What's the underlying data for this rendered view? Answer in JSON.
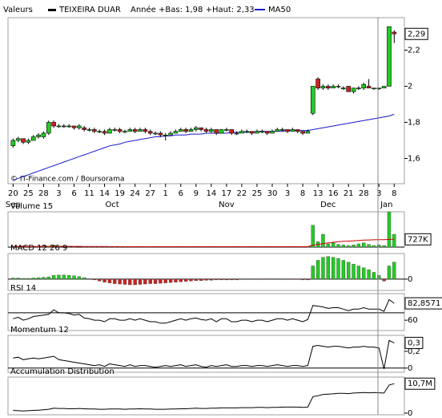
{
  "chart_data": [
    {
      "type": "candlestick",
      "legend_title": "Valeurs",
      "name": "TEIXEIRA DUAR",
      "range_text": "Année +Bas: 1,98 +Haut: 2,33",
      "credit": "© IT-Finance.com / Boursorama",
      "up_color": "#22cc22",
      "down_color": "#cc2222",
      "ohlc": [
        [
          1.67,
          1.71,
          1.66,
          1.7
        ],
        [
          1.7,
          1.72,
          1.69,
          1.71
        ],
        [
          1.71,
          1.71,
          1.68,
          1.69
        ],
        [
          1.69,
          1.71,
          1.68,
          1.7
        ],
        [
          1.7,
          1.73,
          1.7,
          1.72
        ],
        [
          1.72,
          1.74,
          1.71,
          1.73
        ],
        [
          1.72,
          1.75,
          1.71,
          1.74
        ],
        [
          1.74,
          1.81,
          1.73,
          1.8
        ],
        [
          1.8,
          1.81,
          1.77,
          1.78
        ],
        [
          1.78,
          1.79,
          1.77,
          1.78
        ],
        [
          1.78,
          1.79,
          1.77,
          1.78
        ],
        [
          1.78,
          1.79,
          1.77,
          1.78
        ],
        [
          1.78,
          1.78,
          1.76,
          1.77
        ],
        [
          1.77,
          1.79,
          1.76,
          1.78
        ],
        [
          1.77,
          1.78,
          1.75,
          1.76
        ],
        [
          1.76,
          1.77,
          1.75,
          1.76
        ],
        [
          1.76,
          1.77,
          1.74,
          1.75
        ],
        [
          1.75,
          1.76,
          1.74,
          1.75
        ],
        [
          1.75,
          1.76,
          1.73,
          1.74
        ],
        [
          1.74,
          1.77,
          1.74,
          1.76
        ],
        [
          1.76,
          1.77,
          1.75,
          1.76
        ],
        [
          1.76,
          1.77,
          1.74,
          1.75
        ],
        [
          1.75,
          1.76,
          1.74,
          1.75
        ],
        [
          1.75,
          1.77,
          1.75,
          1.76
        ],
        [
          1.76,
          1.77,
          1.74,
          1.75
        ],
        [
          1.75,
          1.77,
          1.75,
          1.76
        ],
        [
          1.76,
          1.77,
          1.74,
          1.75
        ],
        [
          1.75,
          1.76,
          1.73,
          1.74
        ],
        [
          1.74,
          1.75,
          1.73,
          1.74
        ],
        [
          1.74,
          1.75,
          1.72,
          1.73
        ],
        [
          1.73,
          1.74,
          1.7,
          1.73
        ],
        [
          1.73,
          1.75,
          1.73,
          1.74
        ],
        [
          1.74,
          1.76,
          1.74,
          1.75
        ],
        [
          1.75,
          1.77,
          1.75,
          1.76
        ],
        [
          1.76,
          1.77,
          1.74,
          1.75
        ],
        [
          1.75,
          1.77,
          1.75,
          1.76
        ],
        [
          1.76,
          1.78,
          1.75,
          1.77
        ],
        [
          1.77,
          1.77,
          1.75,
          1.76
        ],
        [
          1.76,
          1.77,
          1.74,
          1.75
        ],
        [
          1.75,
          1.77,
          1.74,
          1.76
        ],
        [
          1.76,
          1.76,
          1.73,
          1.74
        ],
        [
          1.74,
          1.76,
          1.74,
          1.76
        ],
        [
          1.76,
          1.77,
          1.75,
          1.76
        ],
        [
          1.76,
          1.76,
          1.73,
          1.74
        ],
        [
          1.74,
          1.75,
          1.73,
          1.74
        ],
        [
          1.74,
          1.76,
          1.74,
          1.75
        ],
        [
          1.75,
          1.76,
          1.74,
          1.75
        ],
        [
          1.75,
          1.75,
          1.73,
          1.74
        ],
        [
          1.74,
          1.76,
          1.74,
          1.75
        ],
        [
          1.75,
          1.76,
          1.74,
          1.75
        ],
        [
          1.75,
          1.75,
          1.73,
          1.74
        ],
        [
          1.74,
          1.76,
          1.74,
          1.75
        ],
        [
          1.75,
          1.77,
          1.75,
          1.76
        ],
        [
          1.76,
          1.77,
          1.75,
          1.76
        ],
        [
          1.76,
          1.76,
          1.74,
          1.75
        ],
        [
          1.75,
          1.77,
          1.75,
          1.76
        ],
        [
          1.76,
          1.76,
          1.74,
          1.75
        ],
        [
          1.75,
          1.75,
          1.73,
          1.74
        ],
        [
          1.74,
          1.76,
          1.74,
          1.75
        ],
        [
          1.85,
          2.0,
          1.84,
          2.0
        ],
        [
          2.04,
          2.05,
          1.98,
          1.99
        ],
        [
          1.99,
          2.01,
          1.98,
          2.0
        ],
        [
          2.0,
          2.01,
          1.98,
          1.99
        ],
        [
          1.99,
          2.01,
          1.99,
          2.0
        ],
        [
          2.0,
          2.01,
          1.99,
          2.0
        ],
        [
          1.99,
          2.0,
          1.98,
          1.99
        ],
        [
          2.0,
          2.0,
          1.97,
          1.97
        ],
        [
          1.97,
          1.99,
          1.96,
          1.99
        ],
        [
          1.99,
          2.0,
          1.98,
          1.99
        ],
        [
          1.99,
          2.02,
          1.98,
          2.01
        ],
        [
          2.0,
          2.04,
          1.99,
          1.99
        ],
        [
          1.99,
          1.99,
          1.98,
          1.99
        ],
        [
          1.99,
          1.99,
          1.98,
          1.99
        ],
        [
          1.99,
          2.0,
          1.99,
          2.0
        ],
        [
          2.0,
          2.33,
          2.0,
          2.33
        ],
        [
          2.3,
          2.31,
          2.24,
          2.29
        ]
      ],
      "overlay": {
        "name": "MA50",
        "color": "#1a1acc",
        "values": [
          1.48,
          1.49,
          1.5,
          1.51,
          1.52,
          1.53,
          1.54,
          1.55,
          1.56,
          1.57,
          1.58,
          1.59,
          1.6,
          1.61,
          1.62,
          1.63,
          1.64,
          1.65,
          1.66,
          1.67,
          1.675,
          1.68,
          1.69,
          1.695,
          1.7,
          1.705,
          1.71,
          1.715,
          1.72,
          1.72,
          1.725,
          1.725,
          1.73,
          1.73,
          1.73,
          1.735,
          1.735,
          1.735,
          1.74,
          1.74,
          1.74,
          1.74,
          1.74,
          1.745,
          1.745,
          1.745,
          1.745,
          1.745,
          1.75,
          1.75,
          1.75,
          1.75,
          1.75,
          1.75,
          1.755,
          1.755,
          1.755,
          1.755,
          1.755,
          1.76,
          1.765,
          1.77,
          1.775,
          1.78,
          1.785,
          1.79,
          1.795,
          1.8,
          1.805,
          1.81,
          1.815,
          1.82,
          1.825,
          1.83,
          1.835,
          1.845
        ]
      },
      "last_label": "2,29",
      "ylim": [
        1.46,
        2.38
      ],
      "yticks": [
        {
          "value": 2.2,
          "label": "2,2"
        },
        {
          "value": 2,
          "label": "2"
        },
        {
          "value": 1.8,
          "label": "1,8"
        },
        {
          "value": 1.6,
          "label": "1,6"
        }
      ],
      "xlim": [
        -1,
        77
      ],
      "xticks": [
        {
          "value": 0,
          "label": "20"
        },
        {
          "value": 3,
          "label": "25"
        },
        {
          "value": 6,
          "label": "28"
        },
        {
          "value": 9,
          "label": "3"
        },
        {
          "value": 12,
          "label": "6"
        },
        {
          "value": 15,
          "label": "11"
        },
        {
          "value": 18,
          "label": "14"
        },
        {
          "value": 21,
          "label": "19"
        },
        {
          "value": 24,
          "label": "24"
        },
        {
          "value": 27,
          "label": "27"
        },
        {
          "value": 30,
          "label": "1"
        },
        {
          "value": 33,
          "label": "6"
        },
        {
          "value": 36,
          "label": "9"
        },
        {
          "value": 39,
          "label": "14"
        },
        {
          "value": 42,
          "label": "17"
        },
        {
          "value": 45,
          "label": "22"
        },
        {
          "value": 48,
          "label": "25"
        },
        {
          "value": 51,
          "label": "30"
        },
        {
          "value": 54,
          "label": "3"
        },
        {
          "value": 57,
          "label": "8"
        },
        {
          "value": 60,
          "label": "13"
        },
        {
          "value": 63,
          "label": "16"
        },
        {
          "value": 66,
          "label": "21"
        },
        {
          "value": 69,
          "label": "28"
        },
        {
          "value": 72,
          "label": "3"
        },
        {
          "value": 75,
          "label": "8"
        }
      ],
      "month_ticks": [
        {
          "value": 0,
          "label": "Sep"
        },
        {
          "value": 19.5,
          "label": "Oct"
        },
        {
          "value": 42,
          "label": "Nov"
        },
        {
          "value": 62,
          "label": "Dec"
        },
        {
          "value": 73.5,
          "label": "Jan"
        }
      ]
    },
    {
      "type": "bar",
      "title": "Volume 15",
      "color": "#22cc22",
      "values": [
        60,
        40,
        120,
        30,
        50,
        80,
        140,
        90,
        200,
        60,
        30,
        20,
        40,
        0,
        30,
        60,
        20,
        30,
        10,
        40,
        20,
        50,
        30,
        20,
        60,
        40,
        30,
        20,
        50,
        30,
        40,
        60,
        30,
        20,
        40,
        30,
        50,
        20,
        60,
        30,
        40,
        50,
        30,
        20,
        60,
        40,
        30,
        50,
        20,
        40,
        30,
        20,
        40,
        60,
        30,
        20,
        40,
        30,
        50,
        2050,
        500,
        1200,
        300,
        400,
        250,
        200,
        150,
        200,
        300,
        400,
        250,
        150,
        200,
        150,
        3300,
        1200
      ],
      "overlay": {
        "color": "#cc0000",
        "values": [
          60,
          60,
          65,
          62,
          60,
          62,
          68,
          70,
          78,
          78,
          75,
          72,
          70,
          65,
          62,
          60,
          55,
          52,
          50,
          48,
          45,
          42,
          40,
          38,
          38,
          38,
          36,
          35,
          36,
          35,
          36,
          37,
          36,
          35,
          36,
          36,
          37,
          36,
          38,
          38,
          38,
          38,
          37,
          36,
          38,
          38,
          37,
          38,
          37,
          37,
          36,
          35,
          35,
          36,
          36,
          35,
          34,
          34,
          35,
          190,
          250,
          330,
          400,
          450,
          500,
          540,
          560,
          590,
          620,
          650,
          670,
          680,
          690,
          700,
          720,
          727
        ]
      },
      "last_label": "727K",
      "ylim": [
        0,
        3300
      ]
    },
    {
      "type": "bar",
      "title": "MACD 12 26 9",
      "up_color": "#22cc22",
      "down_color": "#cc2222",
      "values": [
        0.003,
        0.003,
        0.002,
        0.002,
        0.003,
        0.004,
        0.005,
        0.006,
        0.01,
        0.011,
        0.011,
        0.01,
        0.009,
        0.007,
        0.004,
        0.001,
        -0.002,
        -0.005,
        -0.008,
        -0.01,
        -0.012,
        -0.013,
        -0.014,
        -0.015,
        -0.015,
        -0.014,
        -0.013,
        -0.012,
        -0.012,
        -0.011,
        -0.01,
        -0.009,
        -0.008,
        -0.007,
        -0.006,
        -0.005,
        -0.004,
        -0.004,
        -0.003,
        -0.003,
        -0.002,
        -0.002,
        -0.002,
        -0.002,
        -0.002,
        -0.001,
        -0.001,
        -0.001,
        -0.001,
        -0.001,
        -0.001,
        0,
        -0.001,
        -0.001,
        -0.001,
        -0.001,
        -0.001,
        -0.002,
        -0.002,
        0.035,
        0.05,
        0.058,
        0.06,
        0.058,
        0.055,
        0.05,
        0.045,
        0.04,
        0.035,
        0.03,
        0.025,
        0.018,
        0.01,
        -0.005,
        0.035,
        0.045
      ],
      "ylim": [
        -0.03,
        0.068
      ],
      "yticks": [
        0
      ]
    },
    {
      "type": "line",
      "title": "RSI 14",
      "color": "#000000",
      "values": [
        62,
        64,
        60,
        62,
        65,
        66,
        67,
        68,
        74,
        70,
        70,
        69,
        67,
        68,
        63,
        62,
        60,
        60,
        58,
        62,
        62,
        60,
        60,
        62,
        60,
        62,
        60,
        58,
        58,
        56,
        56,
        58,
        60,
        62,
        60,
        62,
        63,
        61,
        60,
        62,
        58,
        62,
        62,
        58,
        58,
        60,
        60,
        58,
        60,
        60,
        58,
        60,
        62,
        62,
        60,
        62,
        60,
        58,
        61,
        80,
        79,
        78,
        76,
        77,
        77,
        75,
        73,
        75,
        75,
        77,
        75,
        75,
        75,
        72,
        88,
        82.8571
      ],
      "last_label": "82,8571",
      "ylim": [
        46,
        96
      ],
      "yticks": [
        60
      ],
      "levels": [
        70
      ]
    },
    {
      "type": "line",
      "title": "Momentum 12",
      "color": "#000000",
      "values": [
        0.12,
        0.13,
        0.1,
        0.11,
        0.12,
        0.11,
        0.12,
        0.13,
        0.14,
        0.1,
        0.09,
        0.08,
        0.07,
        0.06,
        0.05,
        0.04,
        0.03,
        0.04,
        0.02,
        0.05,
        0.04,
        0.03,
        0.02,
        0.04,
        0.02,
        0.03,
        0.03,
        0.02,
        0.01,
        0.02,
        0.03,
        0.02,
        0.03,
        0.04,
        0.02,
        0.03,
        0.04,
        0.02,
        0.01,
        0.03,
        0.02,
        0.03,
        0.04,
        0.02,
        0.02,
        0.03,
        0.03,
        0.02,
        0.03,
        0.03,
        0.02,
        0.03,
        0.04,
        0.03,
        0.02,
        0.03,
        0.03,
        0.02,
        0.03,
        0.26,
        0.27,
        0.26,
        0.25,
        0.26,
        0.26,
        0.25,
        0.24,
        0.25,
        0.25,
        0.26,
        0.25,
        0.25,
        0.24,
        -0.01,
        0.33,
        0.3
      ],
      "last_label": "0,3",
      "ylim": [
        -0.05,
        0.39
      ],
      "yticks": [
        {
          "value": 0.2,
          "label": "0,2"
        },
        0
      ],
      "levels": [
        0
      ]
    },
    {
      "type": "line",
      "title": "Accumulation Distribution",
      "color": "#000000",
      "values": [
        1.0,
        0.9,
        0.8,
        0.9,
        1.0,
        1.1,
        1.2,
        1.4,
        1.8,
        1.7,
        1.7,
        1.6,
        1.6,
        1.7,
        1.6,
        1.5,
        1.5,
        1.4,
        1.4,
        1.5,
        1.5,
        1.5,
        1.4,
        1.5,
        1.5,
        1.6,
        1.5,
        1.5,
        1.4,
        1.4,
        1.4,
        1.5,
        1.5,
        1.6,
        1.6,
        1.7,
        1.8,
        1.7,
        1.7,
        1.8,
        1.8,
        1.9,
        1.9,
        1.9,
        1.9,
        2.0,
        2.0,
        2.0,
        2.1,
        2.1,
        2.0,
        2.1,
        2.1,
        2.2,
        2.2,
        2.2,
        2.2,
        2.1,
        2.2,
        6.0,
        6.3,
        6.8,
        6.9,
        7.0,
        7.2,
        7.2,
        7.1,
        7.3,
        7.4,
        7.5,
        7.4,
        7.5,
        7.4,
        7.3,
        10.2,
        10.7
      ],
      "last_label": "10,7M",
      "ylim": [
        -0.6,
        13.1
      ],
      "yticks": [
        0
      ]
    }
  ]
}
